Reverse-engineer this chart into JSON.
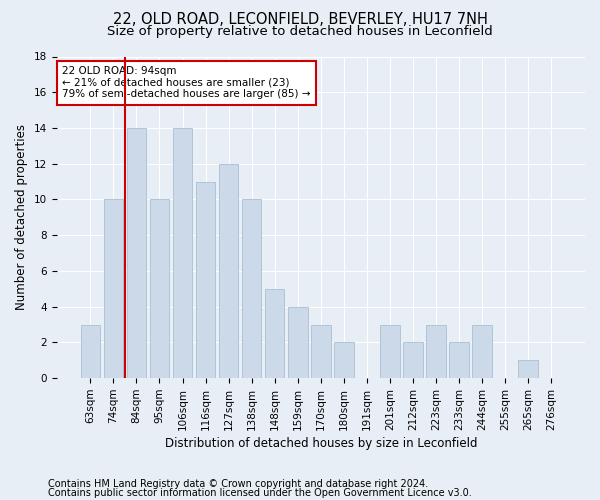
{
  "title1": "22, OLD ROAD, LECONFIELD, BEVERLEY, HU17 7NH",
  "title2": "Size of property relative to detached houses in Leconfield",
  "xlabel": "Distribution of detached houses by size in Leconfield",
  "ylabel": "Number of detached properties",
  "categories": [
    "63sqm",
    "74sqm",
    "84sqm",
    "95sqm",
    "106sqm",
    "116sqm",
    "127sqm",
    "138sqm",
    "148sqm",
    "159sqm",
    "170sqm",
    "180sqm",
    "191sqm",
    "201sqm",
    "212sqm",
    "223sqm",
    "233sqm",
    "244sqm",
    "255sqm",
    "265sqm",
    "276sqm"
  ],
  "values": [
    3,
    10,
    14,
    10,
    14,
    11,
    12,
    10,
    5,
    4,
    3,
    2,
    0,
    3,
    2,
    3,
    2,
    3,
    0,
    1,
    0
  ],
  "bar_color": "#ccd9e8",
  "bar_edge_color": "#b0c4d8",
  "vline_color": "#cc0000",
  "vline_position": 1.5,
  "annotation_line1": "22 OLD ROAD: 94sqm",
  "annotation_line2": "← 21% of detached houses are smaller (23)",
  "annotation_line3": "79% of semi-detached houses are larger (85) →",
  "annotation_box_color": "#ffffff",
  "annotation_box_edge": "#cc0000",
  "ylim": [
    0,
    18
  ],
  "yticks": [
    0,
    2,
    4,
    6,
    8,
    10,
    12,
    14,
    16,
    18
  ],
  "footer1": "Contains HM Land Registry data © Crown copyright and database right 2024.",
  "footer2": "Contains public sector information licensed under the Open Government Licence v3.0.",
  "background_color": "#e8eef5",
  "plot_bg_color": "#e8eef5",
  "grid_color": "#ffffff",
  "title1_fontsize": 10.5,
  "title2_fontsize": 9.5,
  "xlabel_fontsize": 8.5,
  "ylabel_fontsize": 8.5,
  "tick_fontsize": 7.5,
  "footer_fontsize": 7.0,
  "annot_fontsize": 7.5
}
